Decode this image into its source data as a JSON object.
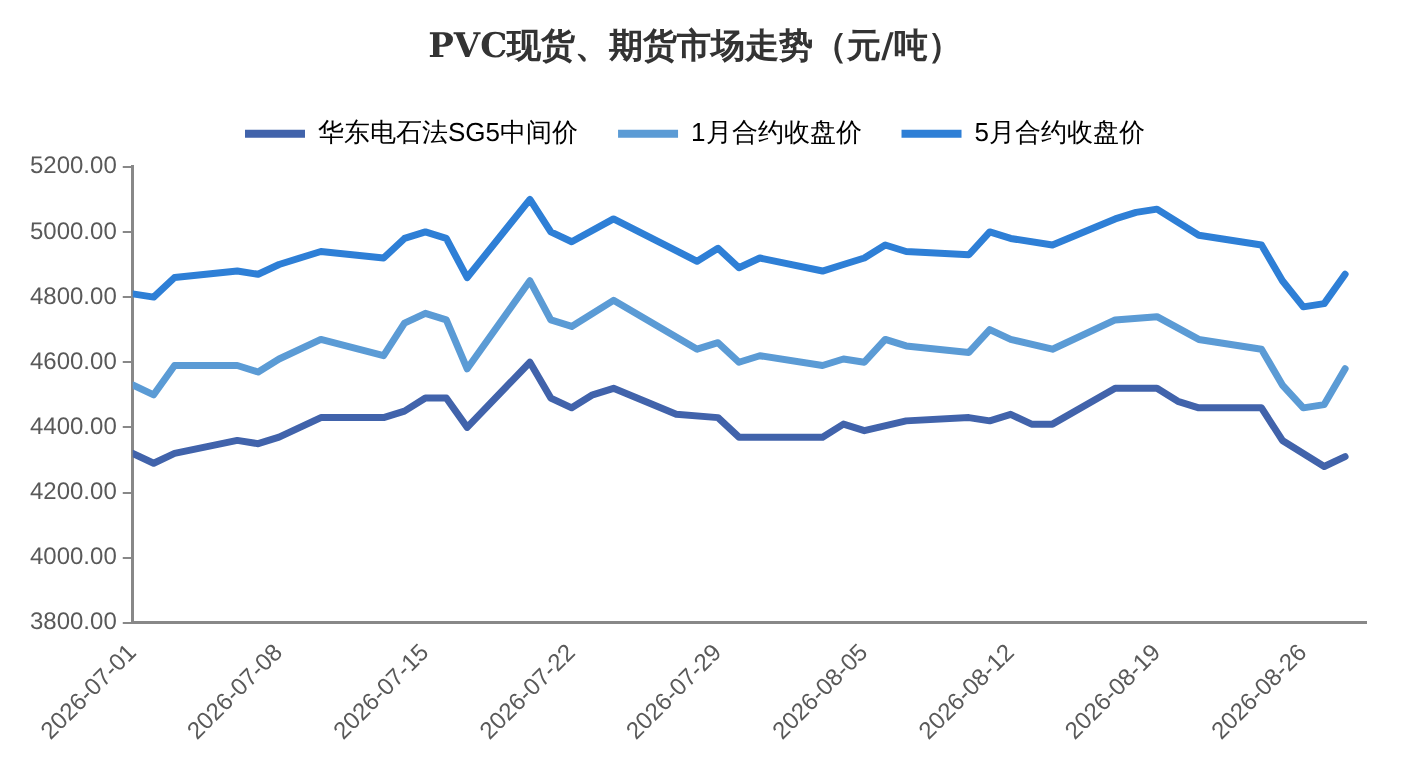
{
  "chart_data": {
    "type": "line",
    "title": "PVC现货、期货市场走势（元/吨）",
    "xlim": [
      "2026-07-01",
      "2026-08-29"
    ],
    "xticks": [
      "2026-07-01",
      "2026-07-08",
      "2026-07-15",
      "2026-07-22",
      "2026-07-29",
      "2026-08-05",
      "2026-08-12",
      "2026-08-19",
      "2026-08-26"
    ],
    "ylim": [
      3800,
      5200
    ],
    "yticks": [
      {
        "value": 3800,
        "label": "3800.00"
      },
      {
        "value": 4000,
        "label": "4000.00"
      },
      {
        "value": 4200,
        "label": "4200.00"
      },
      {
        "value": 4400,
        "label": "4400.00"
      },
      {
        "value": 4600,
        "label": "4600.00"
      },
      {
        "value": 4800,
        "label": "4800.00"
      },
      {
        "value": 5000,
        "label": "5000.00"
      },
      {
        "value": 5200,
        "label": "5200.00"
      }
    ],
    "grid": false,
    "legend": "top",
    "marker": "none",
    "line_style": "solid",
    "series": [
      {
        "name": "华东电石法SG5中间价",
        "color": "#4163ab",
        "x": [
          "2026-07-01",
          "2026-07-02",
          "2026-07-03",
          "2026-07-06",
          "2026-07-07",
          "2026-07-08",
          "2026-07-10",
          "2026-07-13",
          "2026-07-14",
          "2026-07-15",
          "2026-07-16",
          "2026-07-17",
          "2026-07-20",
          "2026-07-21",
          "2026-07-22",
          "2026-07-23",
          "2026-07-24",
          "2026-07-27",
          "2026-07-29",
          "2026-07-30",
          "2026-08-03",
          "2026-08-04",
          "2026-08-05",
          "2026-08-07",
          "2026-08-10",
          "2026-08-11",
          "2026-08-12",
          "2026-08-13",
          "2026-08-14",
          "2026-08-17",
          "2026-08-19",
          "2026-08-20",
          "2026-08-21",
          "2026-08-24",
          "2026-08-25",
          "2026-08-26",
          "2026-08-27",
          "2026-08-28"
        ],
        "values": [
          4320,
          4290,
          4320,
          4360,
          4350,
          4370,
          4430,
          4430,
          4450,
          4490,
          4490,
          4400,
          4600,
          4490,
          4460,
          4500,
          4520,
          4440,
          4430,
          4370,
          4370,
          4410,
          4390,
          4420,
          4430,
          4420,
          4440,
          4410,
          4410,
          4520,
          4520,
          4480,
          4460,
          4460,
          4360,
          4320,
          4280,
          4310
        ]
      },
      {
        "name": "1月合约收盘价",
        "color": "#5b9bd5",
        "x": [
          "2026-07-01",
          "2026-07-02",
          "2026-07-03",
          "2026-07-06",
          "2026-07-07",
          "2026-07-08",
          "2026-07-10",
          "2026-07-13",
          "2026-07-14",
          "2026-07-15",
          "2026-07-16",
          "2026-07-17",
          "2026-07-20",
          "2026-07-21",
          "2026-07-22",
          "2026-07-24",
          "2026-07-28",
          "2026-07-29",
          "2026-07-30",
          "2026-07-31",
          "2026-08-03",
          "2026-08-04",
          "2026-08-05",
          "2026-08-06",
          "2026-08-07",
          "2026-08-10",
          "2026-08-11",
          "2026-08-12",
          "2026-08-14",
          "2026-08-17",
          "2026-08-19",
          "2026-08-21",
          "2026-08-24",
          "2026-08-25",
          "2026-08-26",
          "2026-08-27",
          "2026-08-28"
        ],
        "values": [
          4530,
          4500,
          4590,
          4590,
          4570,
          4610,
          4670,
          4620,
          4720,
          4750,
          4730,
          4580,
          4850,
          4730,
          4710,
          4790,
          4640,
          4660,
          4600,
          4620,
          4590,
          4610,
          4600,
          4670,
          4650,
          4630,
          4700,
          4670,
          4640,
          4730,
          4740,
          4670,
          4640,
          4530,
          4460,
          4470,
          4580
        ]
      },
      {
        "name": "5月合约收盘价",
        "color": "#2e7fd6",
        "x": [
          "2026-07-01",
          "2026-07-02",
          "2026-07-03",
          "2026-07-06",
          "2026-07-07",
          "2026-07-08",
          "2026-07-10",
          "2026-07-13",
          "2026-07-14",
          "2026-07-15",
          "2026-07-16",
          "2026-07-17",
          "2026-07-20",
          "2026-07-21",
          "2026-07-22",
          "2026-07-24",
          "2026-07-28",
          "2026-07-29",
          "2026-07-30",
          "2026-07-31",
          "2026-08-03",
          "2026-08-04",
          "2026-08-05",
          "2026-08-06",
          "2026-08-07",
          "2026-08-10",
          "2026-08-11",
          "2026-08-12",
          "2026-08-14",
          "2026-08-17",
          "2026-08-18",
          "2026-08-19",
          "2026-08-21",
          "2026-08-24",
          "2026-08-25",
          "2026-08-26",
          "2026-08-27",
          "2026-08-28"
        ],
        "values": [
          4810,
          4800,
          4860,
          4880,
          4870,
          4900,
          4940,
          4920,
          4980,
          5000,
          4980,
          4860,
          5100,
          5000,
          4970,
          5040,
          4910,
          4950,
          4890,
          4920,
          4880,
          4900,
          4920,
          4960,
          4940,
          4930,
          5000,
          4980,
          4960,
          5040,
          5060,
          5070,
          4990,
          4960,
          4850,
          4770,
          4780,
          4870
        ]
      }
    ]
  }
}
